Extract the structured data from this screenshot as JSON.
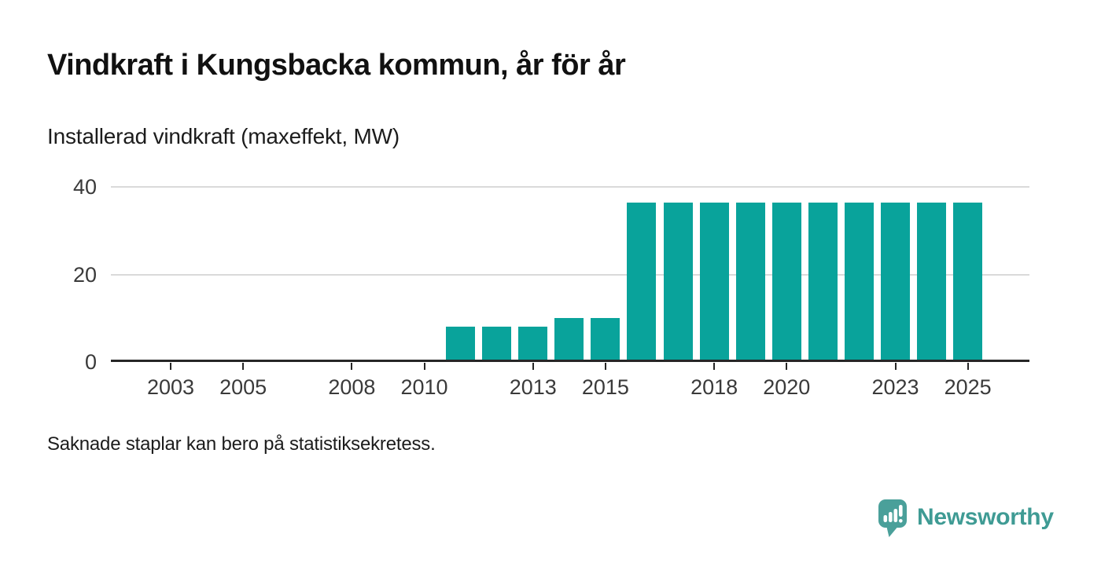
{
  "header": {
    "title": "Vindkraft i Kungsbacka kommun, år för år",
    "subtitle": "Installerad vindkraft (maxeffekt, MW)"
  },
  "footer": {
    "note": "Saknade staplar kan bero på statistiksekretess.",
    "brand": "Newsworthy"
  },
  "colors": {
    "bar": "#09a39b",
    "gridline": "#dadada",
    "axis": "#262626",
    "tick_label": "#3a3a3a",
    "title": "#111111",
    "logo_icon": "#4aa09a",
    "logo_text": "#3f9b94"
  },
  "chart_data": {
    "type": "bar",
    "title": "Vindkraft i Kungsbacka kommun, år för år",
    "subtitle": "Installerad vindkraft (maxeffekt, MW)",
    "xlabel": "",
    "ylabel": "Installerad vindkraft (maxeffekt, MW)",
    "ylim": [
      0,
      40
    ],
    "yticks": [
      0,
      20,
      40
    ],
    "xlim": [
      2001.35,
      2026.7
    ],
    "xticks": [
      2003,
      2005,
      2008,
      2010,
      2013,
      2015,
      2018,
      2020,
      2023,
      2025
    ],
    "grid": true,
    "legend_position": "none",
    "categories": [
      2011,
      2012,
      2013,
      2014,
      2015,
      2016,
      2017,
      2018,
      2019,
      2020,
      2021,
      2022,
      2023,
      2024,
      2025
    ],
    "values": [
      8,
      8,
      8,
      10,
      10,
      36.5,
      36.5,
      36.5,
      36.5,
      36.5,
      36.5,
      36.5,
      36.5,
      36.5,
      36.5
    ],
    "note": "Saknade staplar kan bero på statistiksekretess."
  }
}
